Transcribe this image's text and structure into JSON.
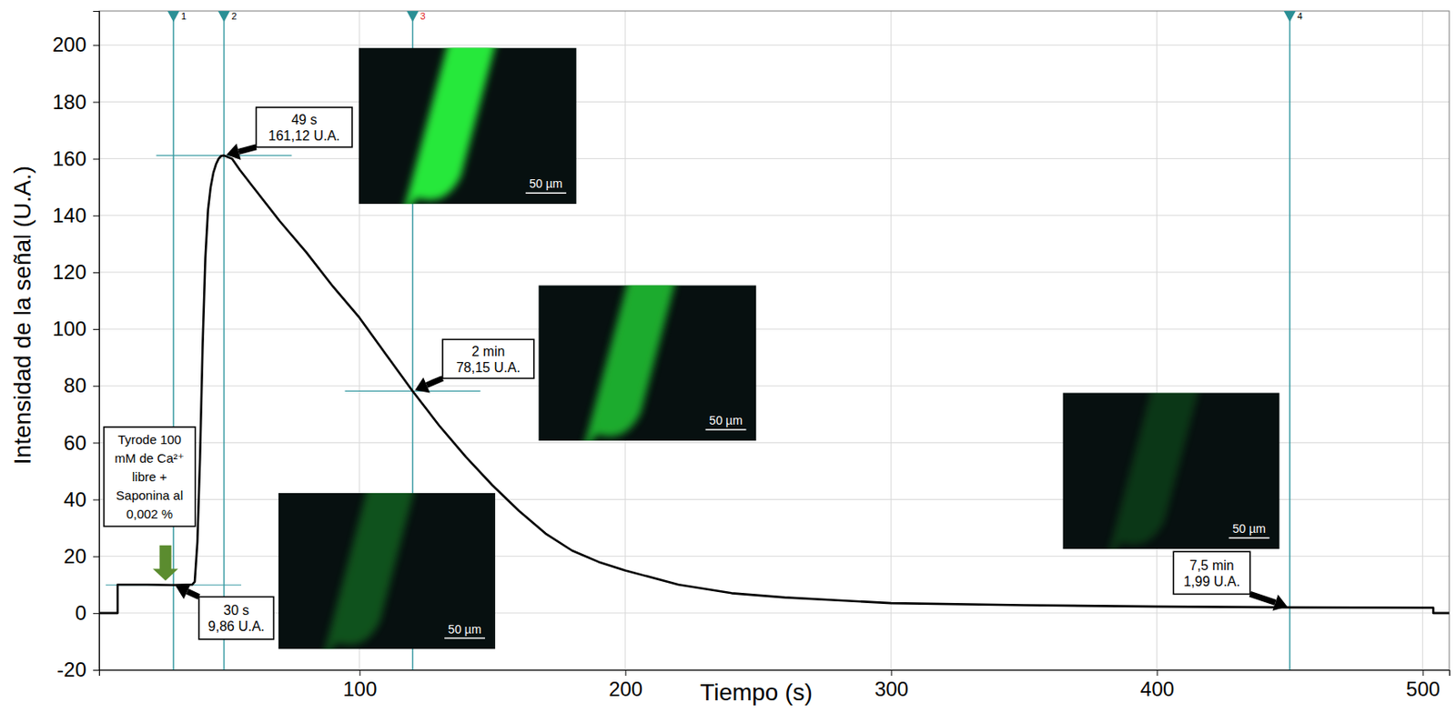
{
  "chart_data": {
    "type": "line",
    "xlabel": "Tiempo (s)",
    "ylabel": "Intensidad de la señal (U.A.)",
    "x": [
      2,
      9,
      9,
      20,
      30,
      35,
      37,
      38,
      39,
      40,
      41,
      42,
      43,
      44,
      45,
      46,
      47,
      48,
      49,
      52,
      55,
      60,
      70,
      80,
      90,
      100,
      110,
      120,
      130,
      140,
      150,
      160,
      170,
      180,
      190,
      200,
      220,
      240,
      260,
      280,
      300,
      350,
      400,
      450,
      500,
      504,
      504,
      510
    ],
    "series": [
      {
        "color": "#000000",
        "values": [
          0,
          0,
          10,
          10,
          9.86,
          10,
          10,
          11,
          25,
          55,
          95,
          125,
          142,
          150,
          155,
          158,
          160,
          161,
          161.12,
          160,
          156,
          150,
          138,
          127,
          115,
          104,
          91,
          78.15,
          66,
          55,
          45,
          36,
          28,
          22,
          18,
          15,
          10,
          7,
          5.5,
          4.5,
          3.5,
          2.8,
          2.3,
          1.99,
          1.9,
          1.9,
          0,
          0
        ]
      }
    ],
    "xlim": [
      2,
      510
    ],
    "ylim": [
      -20,
      212
    ],
    "xticks": [
      100,
      200,
      300,
      400,
      500
    ],
    "yticks": [
      -20,
      0,
      20,
      40,
      60,
      80,
      100,
      120,
      140,
      160,
      180,
      200
    ],
    "grid": true,
    "cursors": [
      {
        "x": 30,
        "label": "1",
        "color": "#000000"
      },
      {
        "x": 49,
        "label": "2",
        "color": "#000000"
      },
      {
        "x": 120,
        "label": "3",
        "color": "#e0201a"
      },
      {
        "x": 450,
        "label": "4",
        "color": "#000000"
      }
    ],
    "annotations": [
      {
        "x": 30,
        "y": 9.86,
        "lines": [
          "30 s",
          "9,86 U.A."
        ],
        "scale_bar": "50 µm"
      },
      {
        "x": 49,
        "y": 161.12,
        "lines": [
          "49 s",
          "161,12 U.A."
        ],
        "scale_bar": "50 µm"
      },
      {
        "x": 120,
        "y": 78.15,
        "lines": [
          "2 min",
          "78,15 U.A."
        ],
        "scale_bar": "50 µm"
      },
      {
        "x": 450,
        "y": 1.99,
        "lines": [
          "7,5 min",
          "1,99 U.A."
        ],
        "scale_bar": "50 µm"
      }
    ],
    "treatment": {
      "x": 27,
      "lines": [
        "Tyrode 100",
        "mM de Ca²⁺",
        "libre +",
        "Saponina al",
        "0,002 %"
      ]
    }
  }
}
